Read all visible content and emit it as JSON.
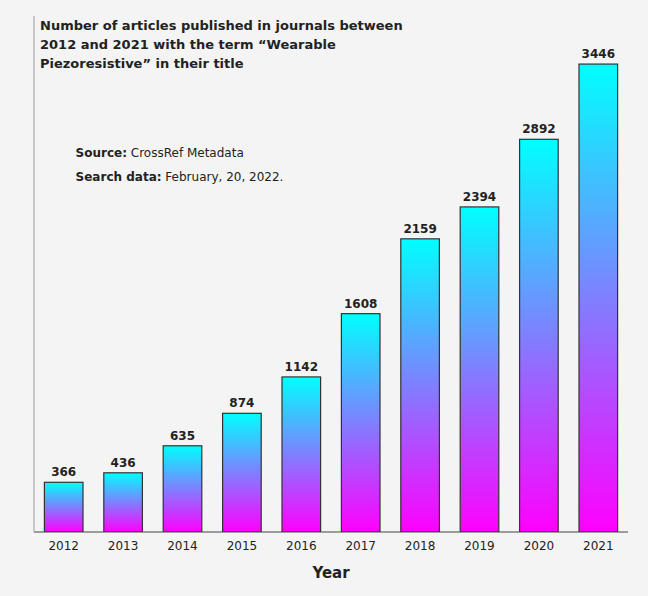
{
  "chart_data": {
    "type": "bar",
    "title": "Number of articles published in journals between 2012 and 2021 with the term “Wearable Piezoresistive” in their title",
    "annotations": [
      "Source: CrossRef Metadata",
      "Search data: February, 20, 2022."
    ],
    "xlabel": "Year",
    "categories": [
      "2012",
      "2013",
      "2014",
      "2015",
      "2016",
      "2017",
      "2018",
      "2019",
      "2020",
      "2021"
    ],
    "values": [
      366,
      436,
      635,
      874,
      1142,
      1608,
      2159,
      2394,
      2892,
      3446
    ],
    "color": [
      "#FF00FF",
      "#00FFFF"
    ],
    "ylim": [
      0,
      3800
    ],
    "yticks": [],
    "tick_labels": "x",
    "data_labels": true,
    "grid": false
  }
}
